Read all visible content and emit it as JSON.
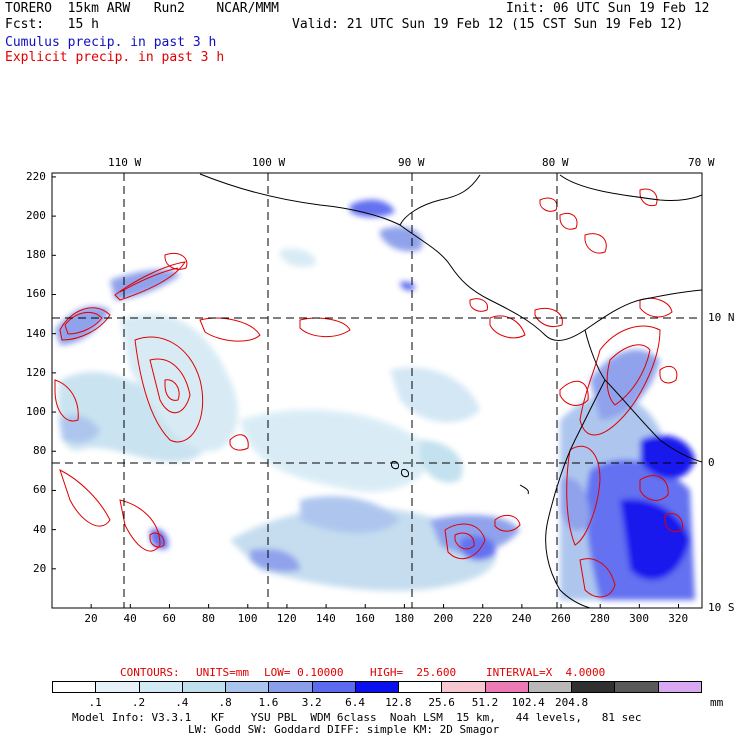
{
  "header": {
    "model": "TORERO  15km ARW   Run2    NCAR/MMM",
    "init": "Init: 06 UTC Sun 19 Feb 12",
    "fcst": "Fcst:   15 h",
    "valid": "Valid: 21 UTC Sun 19 Feb 12 (15 CST Sun 19 Feb 12)",
    "legend_cumulus": "Cumulus precip. in past 3 h",
    "legend_explicit": "Explicit precip. in past 3 h"
  },
  "colors": {
    "cumulus_text": "#1010c0",
    "explicit_text": "#e00000",
    "contour": "#e00000",
    "land": "#000000"
  },
  "map": {
    "top_lon_labels": [
      "110 W",
      "100 W",
      "90 W",
      "80 W",
      "70 W"
    ],
    "right_lat_labels": [
      "10 N",
      "0",
      "10 S"
    ],
    "x_ticks": [
      "20",
      "40",
      "60",
      "80",
      "100",
      "120",
      "140",
      "160",
      "180",
      "200",
      "220",
      "240",
      "260",
      "280",
      "300",
      "320"
    ],
    "y_ticks": [
      "220",
      "200",
      "180",
      "160",
      "140",
      "120",
      "100",
      "80",
      "60",
      "40",
      "20"
    ]
  },
  "contour_info": {
    "label": "CONTOURS:",
    "units": "UNITS=mm",
    "low": "LOW= 0.10000",
    "high": "HIGH=  25.600",
    "interval": "INTERVAL=X  4.0000"
  },
  "colorbar": {
    "colors": [
      "#ffffff",
      "#e6f2f8",
      "#d2eaf4",
      "#c0e0ee",
      "#aac4ee",
      "#8a9eea",
      "#5c6af0",
      "#0a10ee",
      "#ffffff",
      "#f8c8d2",
      "#ec7ab4",
      "#b8b8b8",
      "#303030",
      "#5a5a5a",
      "#d8a8f0"
    ],
    "labels": [
      ".1",
      ".2",
      ".4",
      ".8",
      "1.6",
      "3.2",
      "6.4",
      "12.8",
      "25.6",
      "51.2",
      "102.4",
      "204.8"
    ],
    "unit": "mm"
  },
  "footer": {
    "line1": "Model Info: V3.3.1   KF    YSU PBL  WDM 6class  Noah LSM  15 km,   44 levels,   81 sec",
    "line2": "LW: Godd SW: Goddard DIFF: simple KM: 2D Smagor"
  }
}
